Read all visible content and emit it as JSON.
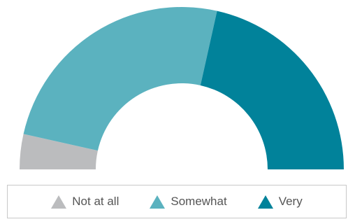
{
  "chart_data": {
    "type": "pie",
    "subtype": "semi-donut",
    "title": "",
    "categories": [
      "Not at all",
      "Somewhat",
      "Very"
    ],
    "values": [
      7,
      50,
      43
    ],
    "unit": "%",
    "colors": [
      "#bbbcbe",
      "#5bb2bf",
      "#01829a"
    ],
    "legend": {
      "position": "bottom",
      "marker": "triangle"
    }
  }
}
